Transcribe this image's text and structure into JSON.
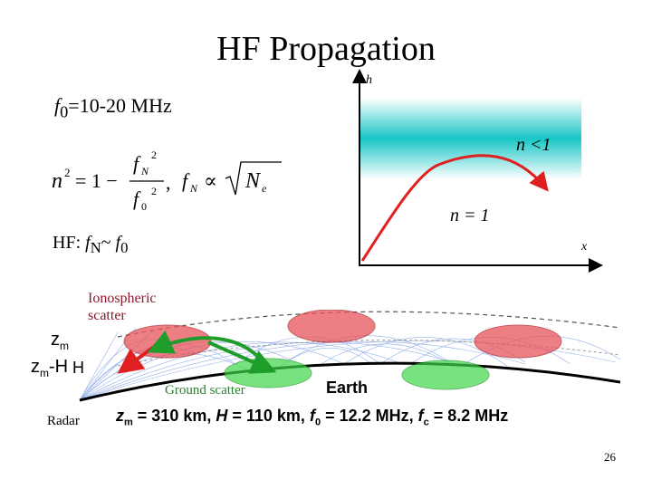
{
  "title": "HF Propagation",
  "frequency": {
    "symbol": "f",
    "subscript": "0",
    "text": "=10-20 MHz"
  },
  "formula": {
    "n2": "n",
    "sq": "2",
    "eq": "= 1 −",
    "fN": "f",
    "fN_sub": "N",
    "f0": "f",
    "f0_sub": "0",
    "comma": ",",
    "prop_f": "f",
    "prop_sub": "N",
    "prop_sym": "∝",
    "Ne": "N",
    "Ne_sub": "e"
  },
  "hf_relation": {
    "prefix": "HF: ",
    "f": "f",
    "sub_N": "N",
    "tilde": "~ ",
    "f0": "f",
    "sub_0": "0"
  },
  "propagation_plot": {
    "axis_h": "h",
    "axis_x": "x",
    "label_n_lt_1": "n <1",
    "label_n_eq_1": "n = 1",
    "colors": {
      "layer": "#19c6c6",
      "ray": "#e02020"
    }
  },
  "scatter_figure": {
    "ionospheric_label_line1": "Ionospheric",
    "ionospheric_label_line2": "scatter",
    "ground_label": "Ground scatter",
    "radar_label": "Radar",
    "earth_label": "Earth",
    "zm_label": "z",
    "zm_sub": "m",
    "zmH_label": "z",
    "zmH_sub": "m",
    "zmH_suffix": "-H",
    "caption": {
      "zm": "z",
      "zm_sub": "m",
      "zm_val": " = 310 km, ",
      "H": "H",
      "H_val": " = 110 km, ",
      "f0": "f",
      "f0_sub": "0",
      "f0_val": " = 12.2 MHz, ",
      "fc": "f",
      "fc_sub": "c",
      "fc_val": " = 8.2 MHz"
    },
    "colors": {
      "ion_patch": "#e8545a",
      "ground_patch": "#3fd64a",
      "rays": "#3b6fd9"
    }
  },
  "page_number": "26"
}
